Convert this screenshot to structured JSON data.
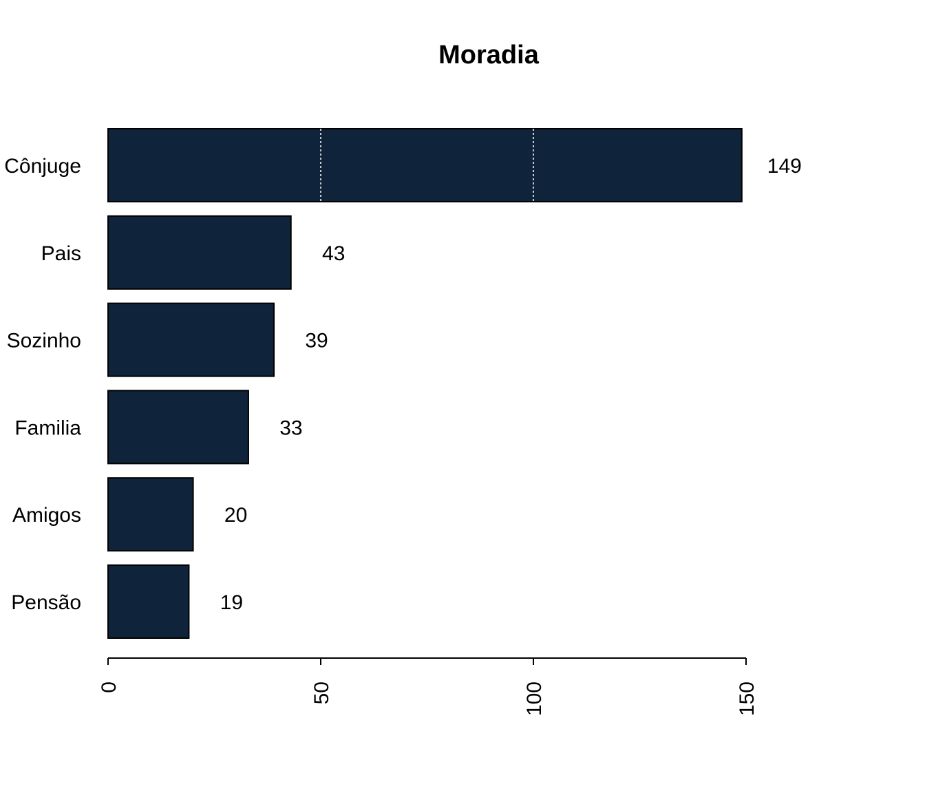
{
  "chart_data": {
    "type": "bar",
    "orientation": "horizontal",
    "title": "Moradia",
    "xlabel": "",
    "ylabel": "",
    "categories": [
      "Cônjuge",
      "Pais",
      "Sozinho",
      "Familia",
      "Amigos",
      "Pensão"
    ],
    "values": [
      149,
      43,
      39,
      33,
      20,
      19
    ],
    "value_labels": [
      "149",
      "43",
      "39",
      "33",
      "20",
      "19"
    ],
    "xlim": [
      0,
      150
    ],
    "x_ticks": [
      0,
      50,
      100,
      150
    ],
    "x_tick_labels": [
      "0",
      "50",
      "100",
      "150"
    ],
    "gridlines": [
      50,
      100
    ],
    "gridline_style": "dotted",
    "grid": true,
    "legend": "none",
    "bar_color": "#0f243a",
    "bar_border_color": "#000000",
    "gridline_color": "#ffffff"
  }
}
